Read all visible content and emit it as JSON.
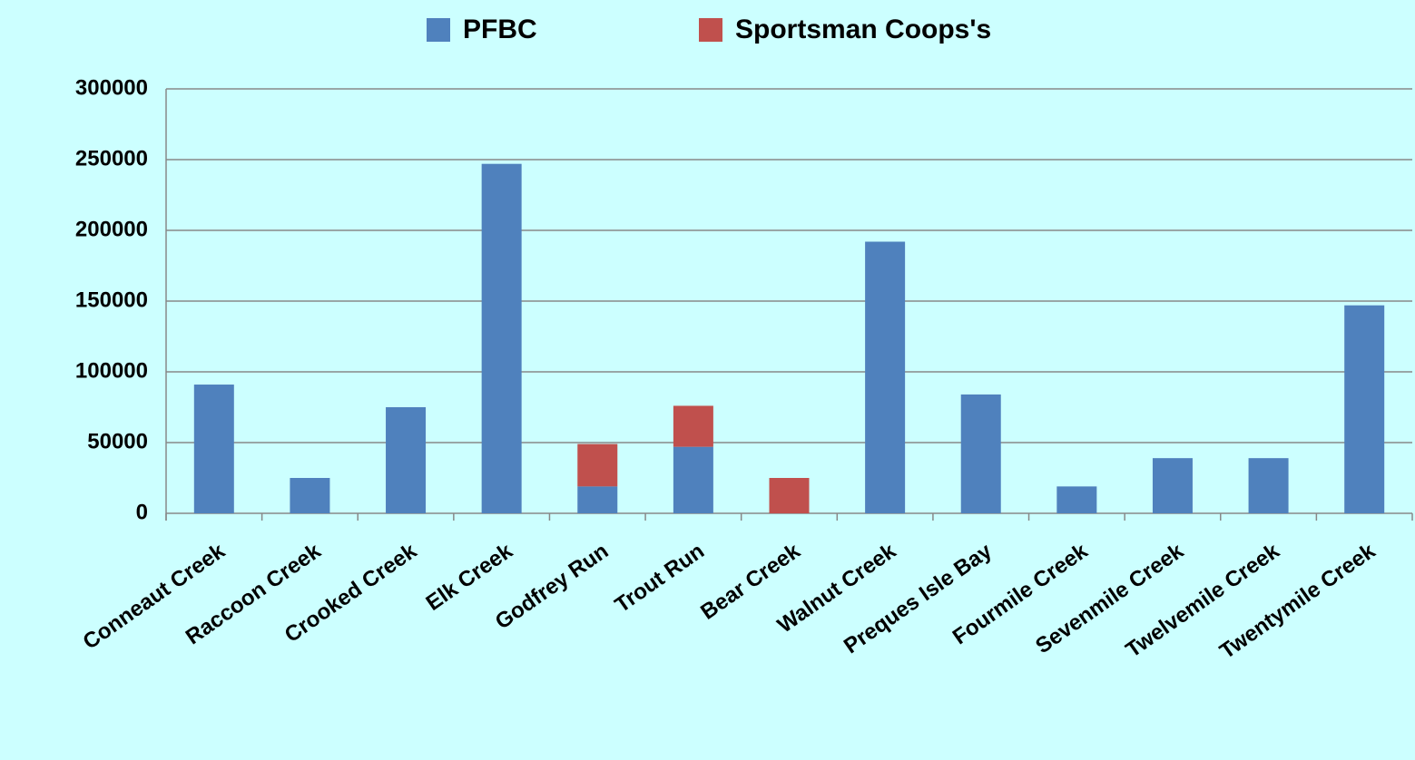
{
  "chart_data": {
    "type": "stacked_bar",
    "categories": [
      "Conneaut Creek",
      "Raccoon Creek",
      "Crooked Creek",
      "Elk Creek",
      "Godfrey Run",
      "Trout Run",
      "Bear Creek",
      "Walnut Creek",
      "Preques Isle Bay",
      "Fourmile Creek",
      "Sevenmile Creek",
      "Twelvemile Creek",
      "Twentymile Creek"
    ],
    "series": [
      {
        "name": "PFBC",
        "color": "#4f81bd",
        "values": [
          91000,
          25000,
          75000,
          247000,
          19000,
          47000,
          0,
          192000,
          84000,
          19000,
          39000,
          39000,
          147000
        ]
      },
      {
        "name": "Sportsman Coops's",
        "color": "#c0504d",
        "values": [
          0,
          0,
          0,
          0,
          30000,
          29000,
          25000,
          0,
          0,
          0,
          0,
          0,
          0
        ]
      }
    ],
    "ylim": [
      0,
      300000
    ],
    "yticks": [
      0,
      50000,
      100000,
      150000,
      200000,
      250000,
      300000
    ],
    "grid": true,
    "legend": "top"
  }
}
